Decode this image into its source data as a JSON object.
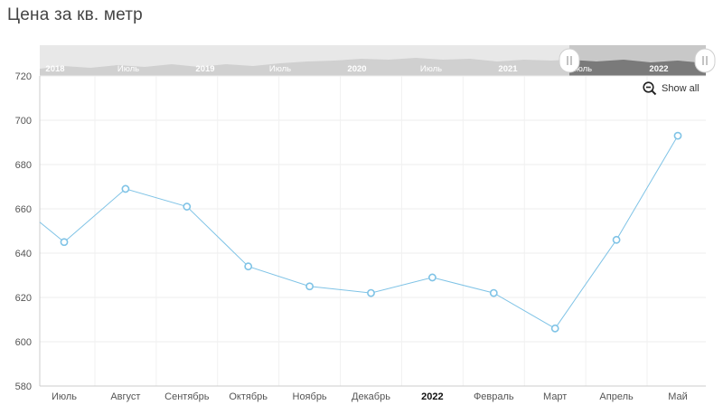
{
  "title": "Цена за кв. метр",
  "zoom_button": {
    "label": "Show all",
    "icon": "zoom-out-icon"
  },
  "colors": {
    "series": "#7fc3e6",
    "navigator_fill": "#d6d6d6",
    "navigator_selected": "#8c8c8c",
    "grid": "#ececec"
  },
  "navigator": {
    "labels": [
      "2018",
      "Июль",
      "2019",
      "Июль",
      "2020",
      "Июль",
      "2021",
      "Июль",
      "2022"
    ],
    "selected_range": [
      "2021-07",
      "2022-05"
    ]
  },
  "chart_data": {
    "type": "line",
    "title": "",
    "xlabel": "",
    "ylabel": "",
    "categories": [
      "Июль",
      "Август",
      "Сентябрь",
      "Октябрь",
      "Ноябрь",
      "Декабрь",
      "2022",
      "Февраль",
      "Март",
      "Апрель",
      "Май"
    ],
    "series": [
      {
        "values": [
          645,
          669,
          661,
          634,
          625,
          622,
          629,
          622,
          606,
          646,
          693
        ]
      }
    ],
    "ylim": [
      580,
      720
    ],
    "yticks": [
      580,
      600,
      620,
      640,
      660,
      680,
      700,
      720
    ],
    "grid": true,
    "legend": "none"
  }
}
